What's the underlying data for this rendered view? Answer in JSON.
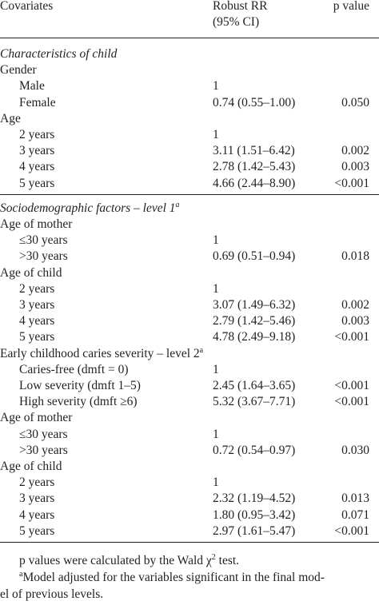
{
  "table": {
    "header": {
      "covariates": "Covariates",
      "rr": [
        "Robust RR",
        "(95% CI)"
      ],
      "p": "p value"
    },
    "rows": [
      {
        "kind": "section",
        "label": "Characteristics of child"
      },
      {
        "kind": "group",
        "label": "Gender"
      },
      {
        "kind": "item",
        "label": "Male",
        "rr": "1"
      },
      {
        "kind": "item",
        "label": "Female",
        "rr": "0.74 (0.55–1.00)",
        "p": "0.050"
      },
      {
        "kind": "group",
        "label": "Age"
      },
      {
        "kind": "item",
        "label": "2 years",
        "rr": "1"
      },
      {
        "kind": "item",
        "label": "3 years",
        "rr": "3.11 (1.51–6.42)",
        "p": "0.002"
      },
      {
        "kind": "item",
        "label": "4 years",
        "rr": "2.78 (1.42–5.43)",
        "p": "0.003"
      },
      {
        "kind": "item",
        "label": "5 years",
        "rr": "4.66 (2.44–8.90)",
        "p": "<0.001"
      },
      {
        "kind": "section",
        "label": "Sociodemographic factors – level 1",
        "sup": "a"
      },
      {
        "kind": "group",
        "label": "Age of mother"
      },
      {
        "kind": "item",
        "label": "≤30 years",
        "rr": "1"
      },
      {
        "kind": "item",
        "label": ">30 years",
        "rr": "0.69 (0.51–0.94)",
        "p": "0.018"
      },
      {
        "kind": "group",
        "label": "Age of child"
      },
      {
        "kind": "item",
        "label": "2 years",
        "rr": "1"
      },
      {
        "kind": "item",
        "label": "3 years",
        "rr": "3.07 (1.49–6.32)",
        "p": "0.002"
      },
      {
        "kind": "item",
        "label": "4 years",
        "rr": "2.79 (1.42–5.46)",
        "p": "0.003"
      },
      {
        "kind": "item",
        "label": "5 years",
        "rr": "4.78 (2.49–9.18)",
        "p": "<0.001"
      },
      {
        "kind": "group",
        "label": "Early childhood caries severity – level 2",
        "sup": "a"
      },
      {
        "kind": "item",
        "label": "Caries-free (dmft = 0)",
        "rr": "1"
      },
      {
        "kind": "item",
        "label": "Low severity (dmft 1–5)",
        "rr": "2.45 (1.64–3.65)",
        "p": "<0.001"
      },
      {
        "kind": "item",
        "label": "High severity (dmft ≥6)",
        "rr": "5.32 (3.67–7.71)",
        "p": "<0.001"
      },
      {
        "kind": "group",
        "label": "Age of mother"
      },
      {
        "kind": "item",
        "label": "≤30 years",
        "rr": "1"
      },
      {
        "kind": "item",
        "label": ">30 years",
        "rr": "0.72 (0.54–0.97)",
        "p": "0.030"
      },
      {
        "kind": "group",
        "label": "Age of child"
      },
      {
        "kind": "item",
        "label": "2 years",
        "rr": "1"
      },
      {
        "kind": "item",
        "label": "3 years",
        "rr": "2.32 (1.19–4.52)",
        "p": "0.013"
      },
      {
        "kind": "item",
        "label": "4 years",
        "rr": "1.80 (0.95–3.42)",
        "p": "0.071"
      },
      {
        "kind": "item",
        "label": "5 years",
        "rr": "2.97 (1.61–5.47)",
        "p": "<0.001"
      }
    ],
    "footnotes": [
      {
        "text": "p values were calculated by the Wald χ",
        "sup": "2",
        "tail": " test."
      },
      {
        "sup": "a",
        "text": "Model adjusted for the variables significant in the final mod-",
        "cont": "el of previous levels."
      }
    ]
  }
}
